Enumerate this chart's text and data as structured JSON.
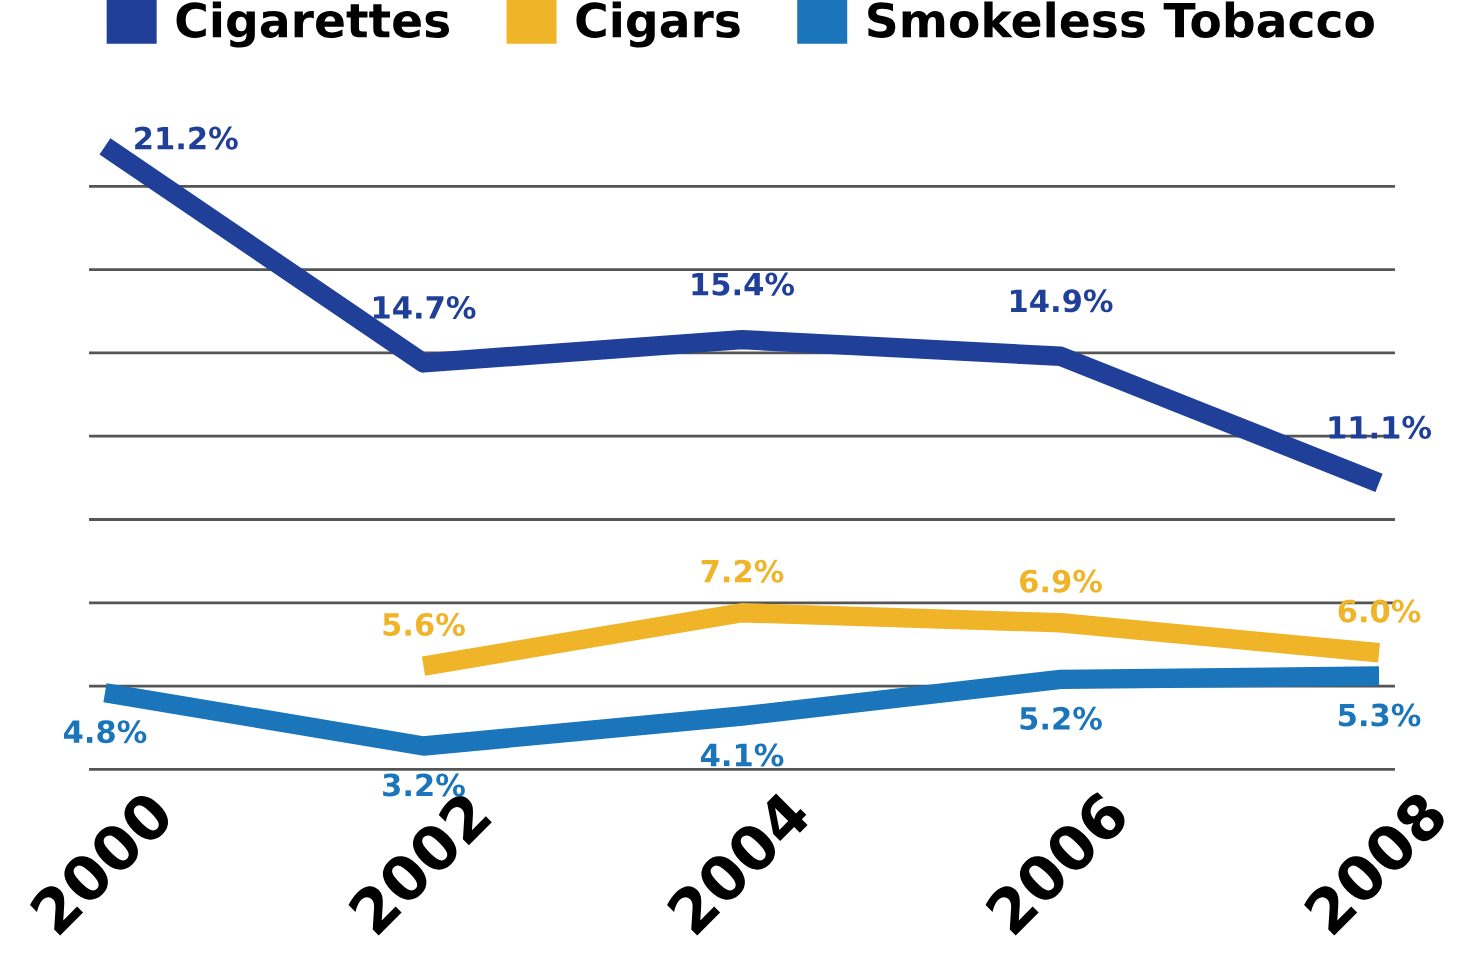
{
  "chart_data": {
    "type": "line",
    "categories": [
      "2000",
      "2002",
      "2004",
      "2006",
      "2008"
    ],
    "series": [
      {
        "name": "Cigarettes",
        "color": "#1f3f99",
        "values": [
          21.2,
          14.7,
          15.4,
          14.9,
          11.1
        ],
        "value_labels": [
          "21.2%",
          "14.7%",
          "15.4%",
          "14.9%",
          "11.1%"
        ]
      },
      {
        "name": "Cigars",
        "color": "#f0b429",
        "values": [
          null,
          5.6,
          7.2,
          6.9,
          6.0
        ],
        "value_labels": [
          null,
          "5.6%",
          "7.2%",
          "6.9%",
          "6.0%"
        ]
      },
      {
        "name": "Smokeless Tobacco",
        "color": "#1a75bb",
        "values": [
          4.8,
          3.2,
          4.1,
          5.2,
          5.3
        ],
        "value_labels": [
          "4.8%",
          "3.2%",
          "4.1%",
          "5.2%",
          "5.3%"
        ]
      }
    ],
    "legend": "top",
    "grid": "y",
    "tick_labels": "x",
    "marker": "none",
    "line_style": "solid"
  }
}
